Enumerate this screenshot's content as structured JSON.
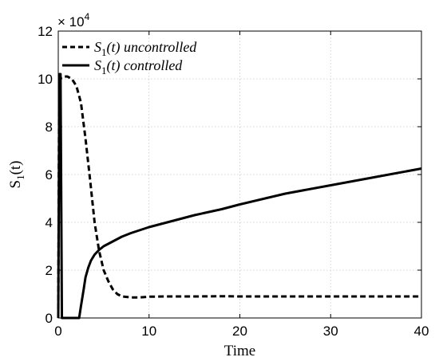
{
  "chart_data": {
    "type": "line",
    "xlabel": "Time",
    "ylabel_main": "S",
    "ylabel_sub": "1",
    "ylabel_tail": "(t)",
    "y_multiplier": {
      "base": "× 10",
      "exponent": "4"
    },
    "xlim": [
      0,
      40
    ],
    "ylim": [
      0,
      120000
    ],
    "x_ticks": [
      0,
      10,
      20,
      30,
      40
    ],
    "y_ticks": [
      0,
      20000,
      40000,
      60000,
      80000,
      100000,
      120000
    ],
    "x_tick_labels": [
      "0",
      "10",
      "20",
      "30",
      "40"
    ],
    "y_tick_labels": [
      "0",
      "2",
      "4",
      "6",
      "8",
      "10",
      "12"
    ],
    "grid": true,
    "legend_position": "top-left",
    "series": [
      {
        "name": "S1(t) uncontrolled",
        "legend_main": "S",
        "legend_sub": "1",
        "legend_tail": "(t) uncontrolled",
        "style": "dashed",
        "color": "#000000",
        "x": [
          0,
          0.1,
          0.25,
          0.5,
          1,
          1.5,
          2,
          2.5,
          3,
          3.5,
          4,
          4.5,
          5,
          5.5,
          6,
          6.5,
          7,
          8,
          9,
          10,
          12,
          15,
          18,
          20,
          25,
          30,
          35,
          40
        ],
        "y": [
          0,
          100000,
          100500,
          101000,
          101000,
          100000,
          97000,
          90000,
          75000,
          58000,
          40000,
          28000,
          20000,
          15500,
          12000,
          10000,
          9000,
          8600,
          8600,
          8900,
          9000,
          9000,
          9100,
          9000,
          9000,
          9000,
          9000,
          9000
        ]
      },
      {
        "name": "S1(t) controlled",
        "legend_main": "S",
        "legend_sub": "1",
        "legend_tail": "(t) controlled",
        "style": "solid",
        "color": "#000000",
        "x": [
          0,
          0.12,
          0.25,
          0.4,
          0.5,
          2.3,
          2.5,
          2.8,
          3.0,
          3.3,
          3.6,
          4,
          4.5,
          5,
          6,
          7,
          8,
          10,
          12,
          15,
          18,
          20,
          25,
          30,
          35,
          40
        ],
        "y": [
          0,
          102000,
          102000,
          0,
          0,
          0,
          5000,
          12000,
          17000,
          21000,
          24000,
          26500,
          28500,
          30000,
          32000,
          34000,
          35500,
          38000,
          40000,
          43000,
          45500,
          47500,
          52000,
          55500,
          59000,
          62500
        ]
      }
    ]
  }
}
